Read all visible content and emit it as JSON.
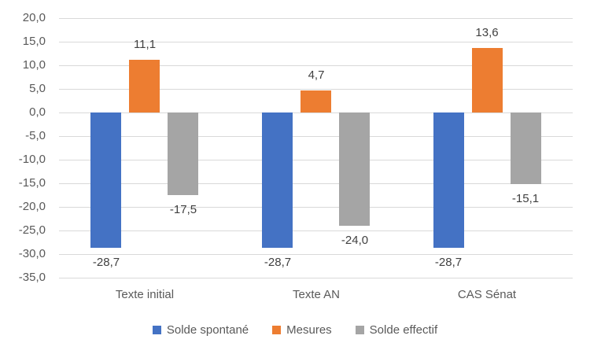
{
  "chart_data": {
    "type": "bar",
    "title": "",
    "xlabel": "",
    "ylabel": "",
    "categories": [
      "Texte initial",
      "Texte AN",
      "CAS Sénat"
    ],
    "series": [
      {
        "name": "Solde spontané",
        "color": "#4472C4",
        "values": [
          -28.7,
          -28.7,
          -28.7
        ],
        "labels": [
          "-28,7",
          "-28,7",
          "-28,7"
        ]
      },
      {
        "name": "Mesures",
        "color": "#ED7D31",
        "values": [
          11.1,
          4.7,
          13.6
        ],
        "labels": [
          "11,1",
          "4,7",
          "13,6"
        ]
      },
      {
        "name": "Solde effectif",
        "color": "#A5A5A5",
        "values": [
          -17.5,
          -24.0,
          -15.1
        ],
        "labels": [
          "-17,5",
          "-24,0",
          "-15,1"
        ]
      }
    ],
    "ylim": [
      -35,
      20
    ],
    "ytick_step": 5,
    "ytick_labels": [
      "20,0",
      "15,0",
      "10,0",
      "5,0",
      "0,0",
      "-5,0",
      "-10,0",
      "-15,0",
      "-20,0",
      "-25,0",
      "-30,0",
      "-35,0"
    ],
    "grid": true,
    "gridline_color": "#D9D9D9",
    "legend_position": "bottom"
  },
  "colors": {
    "background": "#FFFFFF",
    "axis_text": "#595959",
    "data_label_text": "#404040",
    "legend_text": "#595959"
  }
}
